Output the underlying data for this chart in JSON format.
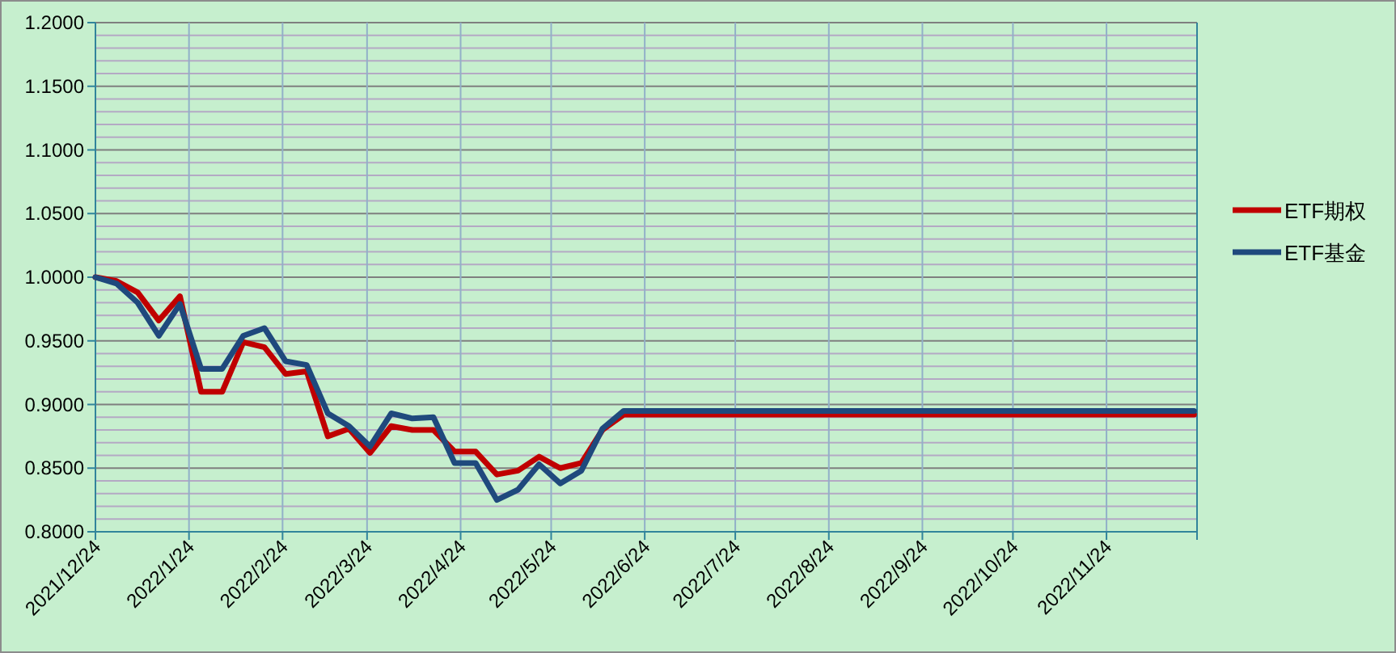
{
  "chart_data": {
    "type": "line",
    "x": [
      "2021-12-24",
      "2021-12-31",
      "2022-01-07",
      "2022-01-14",
      "2022-01-21",
      "2022-01-28",
      "2022-02-04",
      "2022-02-11",
      "2022-02-18",
      "2022-02-25",
      "2022-03-04",
      "2022-03-11",
      "2022-03-18",
      "2022-03-25",
      "2022-04-01",
      "2022-04-08",
      "2022-04-15",
      "2022-04-22",
      "2022-04-29",
      "2022-05-06",
      "2022-05-13",
      "2022-05-20",
      "2022-05-27",
      "2022-06-03",
      "2022-06-10",
      "2022-06-17",
      "2022-12-23"
    ],
    "series": [
      {
        "name": "ETF期权",
        "color": "#c00000",
        "values": [
          1.0,
          0.997,
          0.988,
          0.966,
          0.985,
          0.91,
          0.91,
          0.949,
          0.945,
          0.924,
          0.926,
          0.875,
          0.881,
          0.862,
          0.883,
          0.88,
          0.88,
          0.863,
          0.863,
          0.845,
          0.848,
          0.859,
          0.85,
          0.854,
          0.88,
          0.892,
          0.892
        ]
      },
      {
        "name": "ETF基金",
        "color": "#1f497d",
        "values": [
          1.0,
          0.995,
          0.98,
          0.954,
          0.979,
          0.928,
          0.928,
          0.954,
          0.96,
          0.934,
          0.931,
          0.893,
          0.883,
          0.867,
          0.893,
          0.889,
          0.89,
          0.854,
          0.854,
          0.825,
          0.833,
          0.853,
          0.838,
          0.848,
          0.881,
          0.895,
          0.895
        ]
      }
    ],
    "xlim": [
      "2021-12-24",
      "2022-12-24"
    ],
    "xticks": [
      {
        "value": "2021-12-24",
        "label": "2021/12/24"
      },
      {
        "value": "2022-01-24",
        "label": "2022/1/24"
      },
      {
        "value": "2022-02-24",
        "label": "2022/2/24"
      },
      {
        "value": "2022-03-24",
        "label": "2022/3/24"
      },
      {
        "value": "2022-04-24",
        "label": "2022/4/24"
      },
      {
        "value": "2022-05-24",
        "label": "2022/5/24"
      },
      {
        "value": "2022-06-24",
        "label": "2022/6/24"
      },
      {
        "value": "2022-07-24",
        "label": "2022/7/24"
      },
      {
        "value": "2022-08-24",
        "label": "2022/8/24"
      },
      {
        "value": "2022-09-24",
        "label": "2022/9/24"
      },
      {
        "value": "2022-10-24",
        "label": "2022/10/24"
      },
      {
        "value": "2022-11-24",
        "label": "2022/11/24"
      },
      {
        "value": "2022-12-24",
        "label": null
      }
    ],
    "ylim": [
      0.8,
      1.2
    ],
    "yticks": [
      {
        "value": 0.8,
        "label": "0.8000"
      },
      {
        "value": 0.85,
        "label": "0.8500"
      },
      {
        "value": 0.9,
        "label": "0.9000"
      },
      {
        "value": 0.95,
        "label": "0.9500"
      },
      {
        "value": 1.0,
        "label": "1.0000"
      },
      {
        "value": 1.05,
        "label": "1.0500"
      },
      {
        "value": 1.1,
        "label": "1.1000"
      },
      {
        "value": 1.15,
        "label": "1.1500"
      },
      {
        "value": 1.2,
        "label": "1.2000"
      }
    ],
    "grid": true,
    "legend": "right",
    "marker": "none",
    "line_style": "solid"
  }
}
